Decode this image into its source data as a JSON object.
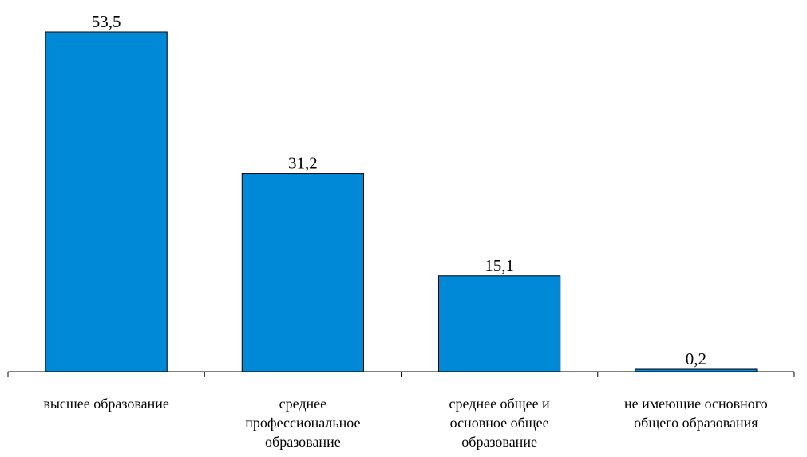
{
  "chart_data": {
    "type": "bar",
    "categories": [
      "высшее образование",
      "среднее профессиональное образование",
      "среднее общее и основное общее образование",
      "не имеющие основного общего образования"
    ],
    "category_lines": [
      [
        "высшее образование"
      ],
      [
        "среднее",
        "профессиональное",
        "образование"
      ],
      [
        "среднее общее и",
        "основное общее",
        "образование"
      ],
      [
        "не имеющие основного",
        "общего образования"
      ]
    ],
    "values": [
      53.5,
      31.2,
      15.1,
      0.2
    ],
    "value_labels": [
      "53,5",
      "31,2",
      "15,1",
      "0,2"
    ],
    "title": "",
    "xlabel": "",
    "ylabel": "",
    "ylim": [
      0,
      53.5
    ],
    "grid": false,
    "legend": "none",
    "bar_color": "#0089d6"
  }
}
